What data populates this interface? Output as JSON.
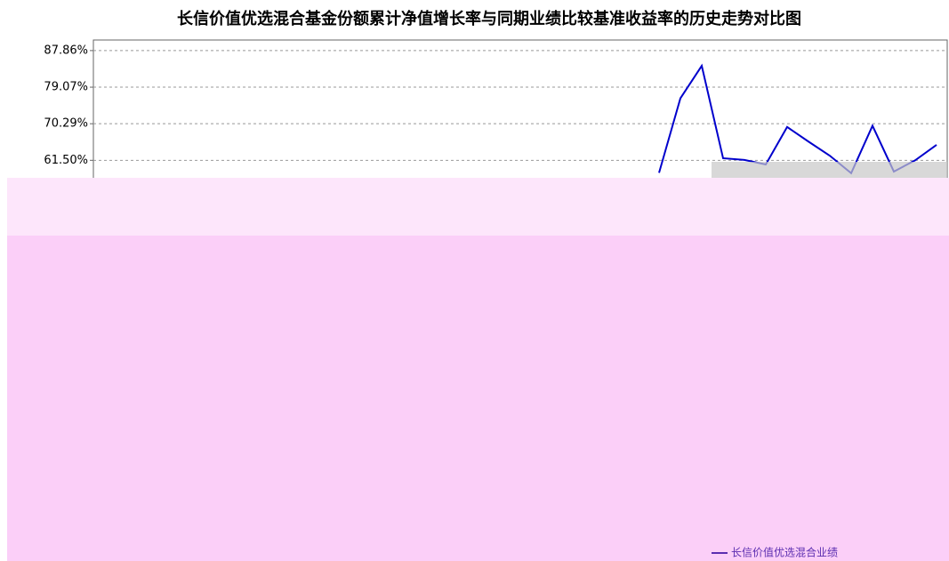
{
  "chart_data": {
    "type": "line",
    "title": "长信价值优选混合基金份额累计净值增长率与同期业绩比较基准收益率的历史走势对比图",
    "categories": [
      null,
      null,
      null,
      null,
      null,
      null,
      null,
      null,
      null,
      null,
      null,
      null,
      null,
      null,
      null,
      null,
      null,
      null,
      null,
      null,
      null,
      null,
      null,
      null,
      null,
      null,
      null,
      null,
      null,
      null,
      null,
      null,
      null,
      null,
      null,
      null,
      null,
      null,
      null,
      null
    ],
    "series": [
      {
        "name": "长信价值优选混合业绩",
        "color": "#0000cc",
        "values": [
          null,
          null,
          null,
          null,
          null,
          null,
          null,
          null,
          null,
          null,
          null,
          null,
          null,
          null,
          null,
          null,
          null,
          null,
          null,
          null,
          null,
          null,
          null,
          null,
          null,
          null,
          58.5,
          76.4,
          84.2,
          62.0,
          61.6,
          60.5,
          69.5,
          66.0,
          62.6,
          58.4,
          69.8,
          58.8,
          61.5,
          65.2
        ]
      }
    ],
    "ylim": [
      -26,
      90.4
    ],
    "yticks": [
      {
        "value": 87.86,
        "label": "87.86%"
      },
      {
        "value": 79.07,
        "label": "79.07%"
      },
      {
        "value": 70.29,
        "label": "70.29%"
      },
      {
        "value": 61.5,
        "label": "61.50%"
      }
    ],
    "grid": true
  }
}
